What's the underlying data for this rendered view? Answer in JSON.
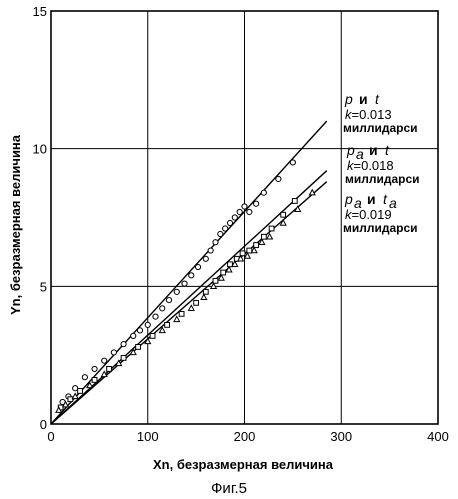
{
  "chart_data": {
    "type": "scatter",
    "xlabel": "Xn, безразмерная величина",
    "ylabel": "Yn, безразмерная величина",
    "caption": "Фиг.5",
    "xlim": [
      0,
      400
    ],
    "ylim": [
      0,
      15
    ],
    "xticks": [
      "0",
      "100",
      "200",
      "300",
      "400"
    ],
    "yticks": [
      "0",
      "5",
      "10",
      "15"
    ],
    "grid": true,
    "legend_position": "right",
    "legend": [
      {
        "v1": "p",
        "v1_sub": "",
        "conj": "и",
        "v2": "t",
        "v2_sub": "",
        "k_label": "k",
        "k_value": "=0.013",
        "unit": "миллидарси"
      },
      {
        "v1": "p",
        "v1_sub": "a",
        "conj": "и",
        "v2": "t",
        "v2_sub": "",
        "k_label": "k",
        "k_value": "=0.018",
        "unit": "миллидарси"
      },
      {
        "v1": "p",
        "v1_sub": "a",
        "conj": "и",
        "v2": "t",
        "v2_sub": "a",
        "k_label": "k",
        "k_value": "=0.019",
        "unit": "миллидарси"
      }
    ],
    "series": [
      {
        "marker": "circle",
        "fit_line": [
          [
            0,
            0
          ],
          [
            285,
            11.0
          ]
        ],
        "x": [
          12,
          18,
          25,
          35,
          45,
          55,
          65,
          75,
          85,
          92,
          100,
          108,
          115,
          122,
          130,
          138,
          145,
          152,
          160,
          165,
          170,
          175,
          180,
          185,
          190,
          195,
          200,
          205,
          212,
          220,
          235,
          250
        ],
        "y": [
          0.8,
          1.0,
          1.3,
          1.7,
          2.0,
          2.3,
          2.6,
          2.9,
          3.2,
          3.4,
          3.6,
          3.9,
          4.2,
          4.5,
          4.8,
          5.1,
          5.4,
          5.7,
          6.0,
          6.3,
          6.6,
          6.9,
          7.1,
          7.3,
          7.5,
          7.7,
          7.9,
          7.7,
          8.0,
          8.4,
          8.9,
          9.5
        ]
      },
      {
        "marker": "square",
        "fit_line": [
          [
            0,
            0
          ],
          [
            285,
            9.2
          ]
        ],
        "x": [
          10,
          20,
          30,
          45,
          60,
          75,
          90,
          105,
          120,
          135,
          150,
          160,
          170,
          178,
          185,
          192,
          198,
          205,
          212,
          220,
          228,
          240,
          252
        ],
        "y": [
          0.6,
          0.9,
          1.2,
          1.6,
          2.0,
          2.4,
          2.8,
          3.2,
          3.6,
          4.0,
          4.4,
          4.8,
          5.2,
          5.5,
          5.8,
          6.0,
          6.2,
          6.3,
          6.5,
          6.8,
          7.1,
          7.6,
          8.1
        ]
      },
      {
        "marker": "triangle",
        "fit_line": [
          [
            0,
            0
          ],
          [
            285,
            8.8
          ]
        ],
        "x": [
          8,
          15,
          25,
          40,
          55,
          70,
          85,
          100,
          115,
          130,
          145,
          158,
          168,
          176,
          184,
          190,
          196,
          203,
          210,
          218,
          226,
          240,
          255,
          270
        ],
        "y": [
          0.5,
          0.7,
          1.0,
          1.4,
          1.8,
          2.2,
          2.6,
          3.0,
          3.4,
          3.8,
          4.2,
          4.6,
          5.0,
          5.3,
          5.6,
          5.8,
          6.0,
          6.1,
          6.3,
          6.6,
          6.8,
          7.3,
          7.8,
          8.4
        ]
      }
    ]
  }
}
